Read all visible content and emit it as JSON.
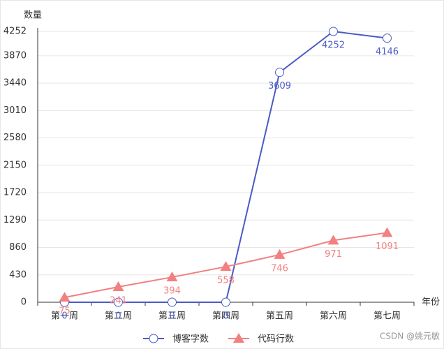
{
  "chart_data": {
    "type": "line",
    "y_axis_label": "数量",
    "x_axis_label": "年份",
    "categories": [
      "第一周",
      "第二周",
      "第三周",
      "第四周",
      "第五周",
      "第六周",
      "第七周"
    ],
    "series": [
      {
        "name": "博客字数",
        "color": "#4a5bc4",
        "marker": "circle",
        "values": [
          0,
          0,
          0,
          0,
          3609,
          4252,
          4146
        ]
      },
      {
        "name": "代码行数",
        "color": "#f28080",
        "marker": "triangle",
        "values": [
          75,
          241,
          394,
          558,
          746,
          971,
          1091
        ]
      }
    ],
    "ylim": [
      0,
      4252
    ],
    "yticks": [
      0,
      430,
      860,
      1290,
      1720,
      2150,
      2580,
      3010,
      3440,
      3870,
      4252
    ],
    "grid": true,
    "legend": "bottom",
    "watermark": "CSDN @姚元敏"
  }
}
